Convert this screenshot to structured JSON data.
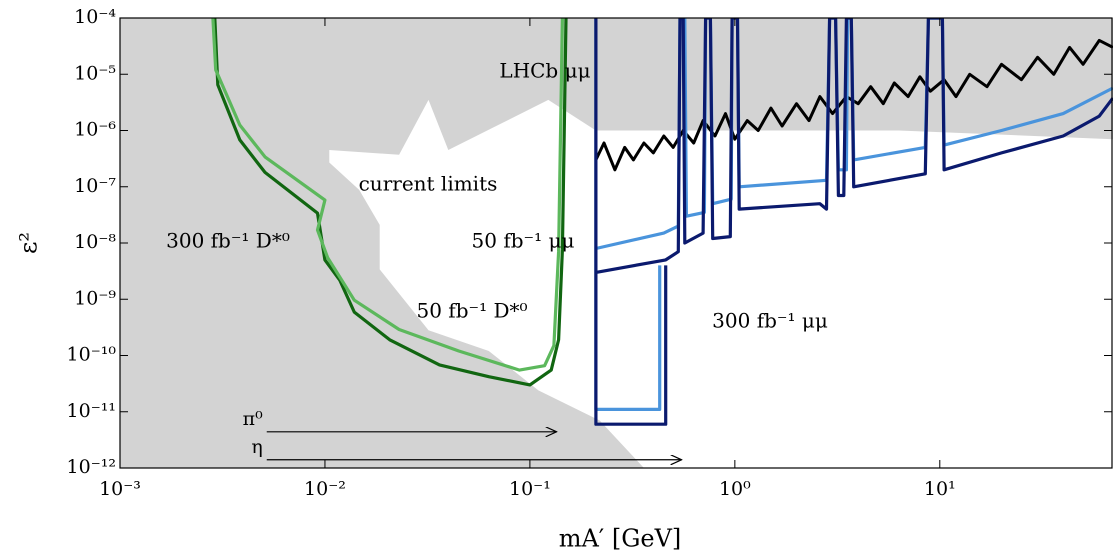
{
  "chart_data": {
    "type": "line",
    "x_label": "mA′ [GeV]",
    "y_label": "ε²",
    "xlim": [
      0.001,
      70
    ],
    "ylim": [
      1e-12,
      0.0001
    ],
    "log_x": true,
    "log_y": true,
    "xticks": [
      {
        "value": 0.001,
        "label": "10⁻³"
      },
      {
        "value": 0.01,
        "label": "10⁻²"
      },
      {
        "value": 0.1,
        "label": "10⁻¹"
      },
      {
        "value": 1,
        "label": "10⁰"
      },
      {
        "value": 10,
        "label": "10¹"
      }
    ],
    "yticks": [
      {
        "value": 1e-12,
        "label": "10⁻¹²"
      },
      {
        "value": 1e-11,
        "label": "10⁻¹¹"
      },
      {
        "value": 1e-10,
        "label": "10⁻¹⁰"
      },
      {
        "value": 1e-09,
        "label": "10⁻⁹"
      },
      {
        "value": 1e-08,
        "label": "10⁻⁸"
      },
      {
        "value": 1e-07,
        "label": "10⁻⁷"
      },
      {
        "value": 1e-06,
        "label": "10⁻⁶"
      },
      {
        "value": 1e-05,
        "label": "10⁻⁵"
      },
      {
        "value": 0.0001,
        "label": "10⁻⁴"
      }
    ],
    "series": [
      {
        "name": "current limits",
        "color": "#d3d3d3",
        "label_color": "#e4e4e4",
        "fill": true,
        "x": [
          0.001,
          0.001,
          0.36,
          0.219,
          0.11,
          0.063,
          0.032,
          0.0185,
          0.0185,
          0.0147,
          0.0105,
          0.0105,
          0.023,
          0.032,
          0.04,
          0.123,
          0.21,
          1,
          6.3,
          70,
          70
        ],
        "values": [
          0.0001,
          1e-12,
          1e-12,
          7e-12,
          2.4e-11,
          1.2e-10,
          2.8e-10,
          3.4e-09,
          2.1e-08,
          8.8e-08,
          2.7e-07,
          4.5e-07,
          3.7e-07,
          3.5e-06,
          4.5e-07,
          3.5e-06,
          1e-06,
          1e-06,
          1e-06,
          7e-07,
          0.0001
        ]
      },
      {
        "name": "LHCb μμ",
        "color": "#000000",
        "x": [
          0.21,
          0.23,
          0.26,
          0.29,
          0.32,
          0.36,
          0.4,
          0.45,
          0.5,
          0.56,
          0.63,
          0.7,
          0.8,
          0.9,
          1.0,
          1.15,
          1.3,
          1.5,
          1.7,
          2.0,
          2.3,
          2.6,
          3.0,
          3.5,
          4,
          4.6,
          5.3,
          6,
          7,
          8,
          9,
          10.5,
          12,
          14,
          17,
          20,
          25,
          30,
          36,
          43,
          50,
          60,
          70
        ],
        "values": [
          3e-07,
          6e-07,
          2e-07,
          5e-07,
          3e-07,
          6e-07,
          4e-07,
          8e-07,
          5e-07,
          1e-06,
          6e-07,
          1.5e-06,
          8e-07,
          2e-06,
          7e-07,
          1.5e-06,
          1e-06,
          2.5e-06,
          1.2e-06,
          3e-06,
          1.5e-06,
          4e-06,
          2e-06,
          4e-06,
          3e-06,
          6e-06,
          3e-06,
          7e-06,
          4e-06,
          9e-06,
          5e-06,
          8e-06,
          4e-06,
          1e-05,
          6e-06,
          1.5e-05,
          8e-06,
          2e-05,
          1e-05,
          3e-05,
          1.5e-05,
          4e-05,
          3e-05
        ]
      },
      {
        "name": "300 fb⁻¹ D*⁰",
        "color": "#116611",
        "x": [
          0.0029,
          0.003,
          0.00384,
          0.0051,
          0.0092,
          0.01,
          0.0118,
          0.0139,
          0.0207,
          0.0362,
          0.063,
          0.1,
          0.127,
          0.138,
          0.144,
          0.15
        ],
        "values": [
          0.0001,
          6.5e-06,
          6.8e-07,
          1.8e-07,
          3.4e-08,
          5e-09,
          2.2e-09,
          5.9e-10,
          1.9e-10,
          6.8e-11,
          4.2e-11,
          3e-11,
          5.5e-11,
          1.9e-10,
          7.6e-09,
          0.0001
        ]
      },
      {
        "name": "50 fb⁻¹ D*⁰",
        "color": "#5cb85c",
        "x": [
          0.00284,
          0.00293,
          0.00384,
          0.0051,
          0.01,
          0.0092,
          0.0103,
          0.0139,
          0.023,
          0.045,
          0.089,
          0.118,
          0.131,
          0.138,
          0.144
        ],
        "values": [
          0.0001,
          1.2e-05,
          1.25e-06,
          3.4e-07,
          5.8e-08,
          1.7e-08,
          5.5e-09,
          9.6e-10,
          2.9e-10,
          1.2e-10,
          5.5e-11,
          6.6e-11,
          1.5e-10,
          7e-09,
          0.0001
        ]
      },
      {
        "name": "50 fb⁻¹ μμ",
        "color": "#4a94dc",
        "x": [
          0.21,
          0.21,
          0.43,
          0.43,
          null,
          0.21,
          0.45,
          0.53,
          0.54,
          0.57,
          0.58,
          0.71,
          0.72,
          0.76,
          0.78,
          0.96,
          0.97,
          1.03,
          1.05,
          2.8,
          2.9,
          3.1,
          3.2,
          3.5,
          3.55,
          3.7,
          3.8,
          8.5,
          8.8,
          10.3,
          10.5,
          20,
          40,
          70
        ],
        "values": [
          0.0001,
          1.1e-11,
          1.1e-11,
          4e-09,
          null,
          8e-09,
          1.5e-08,
          2e-08,
          0.0001,
          0.0001,
          3e-08,
          3.5e-08,
          0.0001,
          0.0001,
          5e-08,
          6e-08,
          0.0001,
          0.0001,
          1e-07,
          1.3e-07,
          0.0001,
          0.0001,
          2e-07,
          2e-07,
          0.0001,
          0.0001,
          3e-07,
          5e-07,
          0.0001,
          0.0001,
          5.5e-07,
          1e-06,
          2e-06,
          5.7e-06
        ]
      },
      {
        "name": "300 fb⁻¹ μμ",
        "color": "#0b1a6e",
        "label_color": "#2a3470",
        "x": [
          0.21,
          0.21,
          0.46,
          0.46,
          null,
          0.21,
          0.46,
          0.53,
          0.54,
          0.56,
          0.57,
          0.7,
          0.72,
          0.76,
          0.78,
          0.95,
          0.97,
          1.03,
          1.05,
          2.6,
          2.8,
          2.9,
          3.1,
          3.2,
          3.4,
          3.5,
          3.7,
          3.8,
          8.5,
          8.8,
          10.3,
          10.5,
          20,
          40,
          60,
          70
        ],
        "values": [
          0.0001,
          6e-12,
          6e-12,
          4e-09,
          null,
          3e-09,
          5e-09,
          7e-09,
          0.0001,
          0.0001,
          1e-08,
          1.5e-08,
          0.0001,
          0.0001,
          1.2e-08,
          1.3e-08,
          0.0001,
          0.0001,
          4e-08,
          5e-08,
          4e-08,
          0.0001,
          0.0001,
          7e-08,
          7e-08,
          0.0001,
          0.0001,
          1e-07,
          1.7e-07,
          0.0001,
          0.0001,
          2e-07,
          4e-07,
          8e-07,
          1.8e-06,
          3.8e-06
        ]
      }
    ],
    "annotations": [
      {
        "text": "π⁰",
        "x": [
          0.0052,
          0.135
        ],
        "y": 4.4e-12
      },
      {
        "text": "η",
        "x": [
          0.0052,
          0.55
        ],
        "y": 1.4e-12
      }
    ]
  }
}
